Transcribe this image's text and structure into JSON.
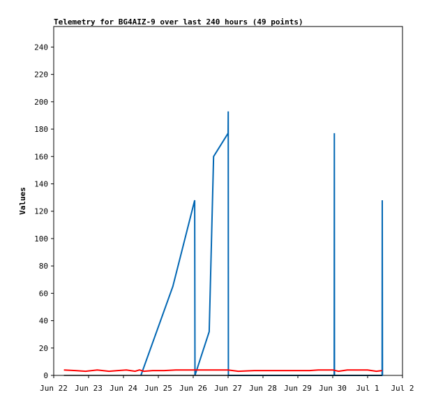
{
  "chart_data": {
    "type": "line",
    "title": "Telemetry for BG4AIZ-9 over last 240 hours (49 points)",
    "ylabel": "Values",
    "xlabel": "",
    "ylim": [
      0,
      255
    ],
    "yticks": [
      0,
      20,
      40,
      60,
      80,
      100,
      120,
      140,
      160,
      180,
      200,
      220,
      240
    ],
    "xlim": [
      "2021-06-22T00:00",
      "2021-07-02T00:00"
    ],
    "xticks": [
      {
        "date": "2021-06-22T00:00",
        "label": "Jun 22"
      },
      {
        "date": "2021-06-23T00:00",
        "label": "Jun 23"
      },
      {
        "date": "2021-06-24T00:00",
        "label": "Jun 24"
      },
      {
        "date": "2021-06-25T00:00",
        "label": "Jun 25"
      },
      {
        "date": "2021-06-26T00:00",
        "label": "Jun 26"
      },
      {
        "date": "2021-06-27T00:00",
        "label": "Jun 27"
      },
      {
        "date": "2021-06-28T00:00",
        "label": "Jun 28"
      },
      {
        "date": "2021-06-29T00:00",
        "label": "Jun 29"
      },
      {
        "date": "2021-06-30T00:00",
        "label": "Jun 30"
      },
      {
        "date": "2021-07-01T00:00",
        "label": "Jul 1"
      },
      {
        "date": "2021-07-02T00:00",
        "label": "Jul 2"
      }
    ],
    "grid": false,
    "legend": "none",
    "series": [
      {
        "color": "#0066b3",
        "points": [
          [
            "2021-06-24T12:00",
            0
          ],
          [
            "2021-06-25T10:00",
            65
          ],
          [
            "2021-06-26T01:00",
            128
          ],
          [
            "2021-06-26T01:12",
            0
          ],
          [
            "2021-06-26T11:00",
            32
          ],
          [
            "2021-06-26T14:00",
            160
          ],
          [
            "2021-06-27T00:00",
            177
          ],
          [
            "2021-06-27T00:06",
            193
          ],
          [
            "2021-06-27T00:12",
            0
          ],
          [
            "2021-06-30T01:00",
            0
          ],
          [
            "2021-06-30T01:06",
            177
          ],
          [
            "2021-06-30T01:12",
            0
          ],
          [
            "2021-07-01T10:00",
            0
          ],
          [
            "2021-07-01T10:06",
            128
          ],
          [
            "2021-07-01T10:12",
            0
          ]
        ]
      },
      {
        "color": "#ff0000",
        "points": [
          [
            "2021-06-22T07:00",
            4
          ],
          [
            "2021-06-22T15:00",
            3.5
          ],
          [
            "2021-06-22T22:00",
            3
          ],
          [
            "2021-06-23T06:00",
            4
          ],
          [
            "2021-06-23T14:00",
            3
          ],
          [
            "2021-06-23T20:00",
            3.5
          ],
          [
            "2021-06-24T02:00",
            4
          ],
          [
            "2021-06-24T08:00",
            3
          ],
          [
            "2021-06-24T11:00",
            4
          ],
          [
            "2021-06-24T14:00",
            3
          ],
          [
            "2021-06-24T20:00",
            3.5
          ],
          [
            "2021-06-25T04:00",
            3.5
          ],
          [
            "2021-06-25T12:00",
            4
          ],
          [
            "2021-06-26T02:00",
            4
          ],
          [
            "2021-06-26T12:00",
            4
          ],
          [
            "2021-06-27T00:00",
            4
          ],
          [
            "2021-06-27T07:00",
            3
          ],
          [
            "2021-06-27T18:00",
            3.5
          ],
          [
            "2021-06-28T12:00",
            3.5
          ],
          [
            "2021-06-29T08:00",
            3.5
          ],
          [
            "2021-06-29T14:00",
            4
          ],
          [
            "2021-06-30T00:00",
            4
          ],
          [
            "2021-06-30T04:00",
            3
          ],
          [
            "2021-06-30T10:00",
            4
          ],
          [
            "2021-07-01T00:00",
            4
          ],
          [
            "2021-07-01T06:00",
            3
          ],
          [
            "2021-07-01T10:00",
            3.5
          ]
        ]
      },
      {
        "color": "#000000",
        "points": [
          [
            "2021-06-22T07:00",
            0
          ],
          [
            "2021-07-01T10:00",
            0
          ]
        ]
      }
    ]
  }
}
